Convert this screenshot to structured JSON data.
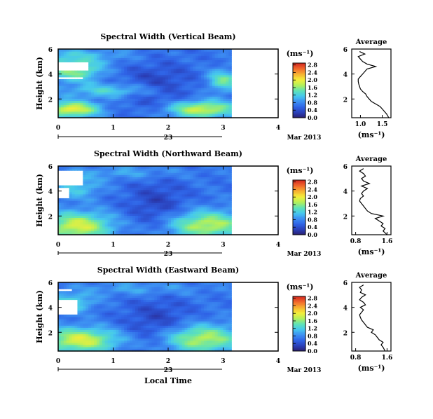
{
  "figure": {
    "date_label": "23",
    "date_suffix": "Mar 2013",
    "xlabel": "Local Time",
    "colorbar_unit": "(ms⁻¹)"
  },
  "colormap": {
    "stops": [
      "#2b1e6e",
      "#2a3fb8",
      "#2f63e6",
      "#3d8ff2",
      "#46c8ee",
      "#5fe3b5",
      "#b4f05a",
      "#f4ee3a",
      "#f6b232",
      "#f26a2c",
      "#d42a20"
    ],
    "colorbar_ticks": [
      "0.0",
      "0.4",
      "0.8",
      "1.2",
      "1.6",
      "2.0",
      "2.4",
      "2.8"
    ]
  },
  "chart_data": [
    {
      "type": "heatmap",
      "title": "Spectral Width (Vertical Beam)",
      "xlabel": "",
      "ylabel": "Height (km)",
      "xlim": [
        0,
        4
      ],
      "x_ticks": [
        "0",
        "1",
        "2",
        "3",
        "4"
      ],
      "ylim": [
        0.5,
        6
      ],
      "y_ticks": [
        "2",
        "4",
        "6"
      ],
      "data_xmax": 3.15,
      "value_range": [
        0.0,
        2.9
      ],
      "pattern": "vertical",
      "profile": {
        "title": "Average",
        "xlabel": "(ms⁻¹)",
        "xlim": [
          0.8,
          1.7
        ],
        "x_ticks": [
          "1.0",
          "1.5"
        ],
        "y_ticks": [
          "2",
          "4",
          "6"
        ],
        "heights": [
          0.5,
          0.8,
          1.0,
          1.2,
          1.4,
          1.6,
          1.8,
          2.0,
          2.2,
          2.4,
          2.6,
          2.8,
          3.0,
          3.2,
          3.4,
          3.6,
          3.8,
          4.0,
          4.2,
          4.4,
          4.6,
          4.8,
          5.0,
          5.2,
          5.4,
          5.6,
          5.8
        ],
        "values": [
          1.65,
          1.6,
          1.55,
          1.5,
          1.45,
          1.35,
          1.25,
          1.2,
          1.15,
          1.12,
          1.05,
          1.0,
          0.98,
          0.96,
          0.95,
          0.95,
          1.0,
          1.05,
          1.1,
          1.15,
          1.35,
          1.15,
          1.05,
          1.0,
          0.95,
          1.1,
          0.98
        ]
      }
    },
    {
      "type": "heatmap",
      "title": "Spectral Width (Northward Beam)",
      "xlabel": "",
      "ylabel": "Height (km)",
      "xlim": [
        0,
        4
      ],
      "x_ticks": [
        "0",
        "1",
        "2",
        "3",
        "4"
      ],
      "ylim": [
        0.5,
        6
      ],
      "y_ticks": [
        "2",
        "4",
        "6"
      ],
      "data_xmax": 3.15,
      "value_range": [
        0.0,
        2.9
      ],
      "pattern": "north",
      "profile": {
        "title": "Average",
        "xlabel": "(ms⁻¹)",
        "xlim": [
          0.7,
          1.7
        ],
        "x_ticks": [
          "0.8",
          "1.6"
        ],
        "y_ticks": [
          "2",
          "4",
          "6"
        ],
        "heights": [
          0.5,
          0.8,
          1.0,
          1.2,
          1.4,
          1.6,
          1.8,
          2.0,
          2.2,
          2.4,
          2.6,
          2.8,
          3.0,
          3.2,
          3.4,
          3.6,
          3.8,
          4.0,
          4.2,
          4.4,
          4.6,
          4.8,
          5.0,
          5.2,
          5.4,
          5.6,
          5.8
        ],
        "values": [
          1.6,
          1.5,
          1.55,
          1.45,
          1.5,
          1.4,
          1.3,
          1.5,
          1.2,
          1.1,
          1.05,
          1.0,
          0.95,
          0.9,
          0.92,
          1.0,
          0.95,
          1.0,
          1.1,
          0.95,
          1.15,
          1.0,
          0.95,
          1.05,
          1.0,
          0.9,
          1.0
        ]
      }
    },
    {
      "type": "heatmap",
      "title": "Spectral Width (Eastward Beam)",
      "xlabel": "Local Time",
      "ylabel": "Height (km)",
      "xlim": [
        0,
        4
      ],
      "x_ticks": [
        "0",
        "1",
        "2",
        "3",
        "4"
      ],
      "ylim": [
        0.5,
        6
      ],
      "y_ticks": [
        "2",
        "4",
        "6"
      ],
      "data_xmax": 3.15,
      "value_range": [
        0.0,
        2.9
      ],
      "pattern": "east",
      "profile": {
        "title": "Average",
        "xlabel": "(ms⁻¹)",
        "xlim": [
          0.7,
          1.7
        ],
        "x_ticks": [
          "0.8",
          "1.6"
        ],
        "y_ticks": [
          "2",
          "4",
          "6"
        ],
        "heights": [
          0.5,
          0.8,
          1.0,
          1.2,
          1.4,
          1.6,
          1.8,
          2.0,
          2.2,
          2.4,
          2.6,
          2.8,
          3.0,
          3.2,
          3.4,
          3.6,
          3.8,
          4.0,
          4.2,
          4.4,
          4.6,
          4.8,
          5.0,
          5.2,
          5.4,
          5.6,
          5.8
        ],
        "values": [
          1.55,
          1.5,
          1.45,
          1.5,
          1.4,
          1.35,
          1.3,
          1.2,
          1.25,
          1.1,
          1.05,
          1.0,
          0.95,
          0.92,
          0.9,
          0.95,
          1.0,
          0.92,
          1.05,
          1.0,
          0.9,
          0.95,
          1.05,
          0.92,
          0.95,
          0.9,
          1.0
        ]
      }
    }
  ]
}
